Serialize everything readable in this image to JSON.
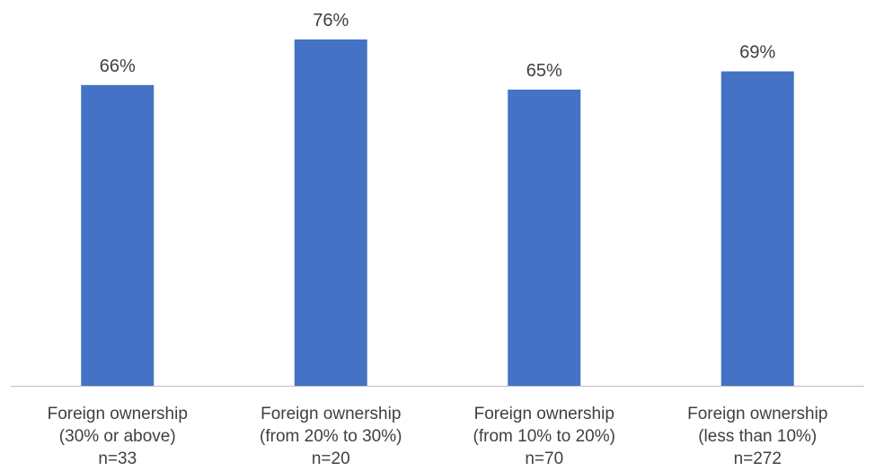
{
  "chart_data": {
    "type": "bar",
    "title": "",
    "xlabel": "",
    "ylabel": "",
    "ylim": [
      0,
      80
    ],
    "grid": false,
    "legend": "none",
    "bar_color": "#4472C4",
    "axis_color": "#BFBFBF",
    "categories": [
      "Foreign ownership (30% or above) n=33",
      "Foreign ownership (from 20% to 30%) n=20",
      "Foreign ownership (from 10% to 20%) n=70",
      "Foreign ownership (less than 10%) n=272"
    ],
    "category_lines": [
      [
        "Foreign ownership",
        "(30% or above)",
        "n=33"
      ],
      [
        "Foreign ownership",
        "(from 20% to 30%)",
        "n=20"
      ],
      [
        "Foreign ownership",
        "(from 10% to 20%)",
        "n=70"
      ],
      [
        "Foreign ownership",
        "(less than 10%)",
        "n=272"
      ]
    ],
    "values": [
      66,
      76,
      65,
      69
    ],
    "value_labels": [
      "66%",
      "76%",
      "65%",
      "69%"
    ]
  }
}
